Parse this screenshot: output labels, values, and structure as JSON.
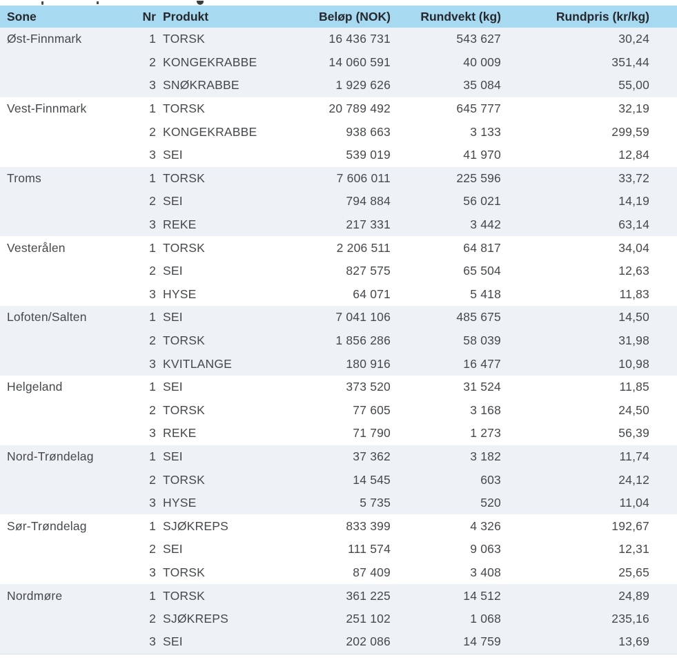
{
  "colors": {
    "header_bg": "#a7d9f1",
    "band_bg": "#eef1f6",
    "text": "#45484d",
    "header_text": "#26282d",
    "hairline": "#dde1e7",
    "page_bg": "#ffffff"
  },
  "table": {
    "headers": [
      "Sone",
      "Nr",
      "Produkt",
      "Beløp (NOK)",
      "Rundvekt (kg)",
      "Rundpris (kr/kg)"
    ],
    "groups": [
      {
        "sone": "Øst-Finnmark",
        "rows": [
          {
            "nr": "1",
            "produkt": "TORSK",
            "belop": "16 436 731",
            "rundvekt": "543 627",
            "rundpris": "30,24"
          },
          {
            "nr": "2",
            "produkt": "KONGEKRABBE",
            "belop": "14 060 591",
            "rundvekt": "40 009",
            "rundpris": "351,44"
          },
          {
            "nr": "3",
            "produkt": "SNØKRABBE",
            "belop": "1 929 626",
            "rundvekt": "35 084",
            "rundpris": "55,00"
          }
        ]
      },
      {
        "sone": "Vest-Finnmark",
        "rows": [
          {
            "nr": "1",
            "produkt": "TORSK",
            "belop": "20 789 492",
            "rundvekt": "645 777",
            "rundpris": "32,19"
          },
          {
            "nr": "2",
            "produkt": "KONGEKRABBE",
            "belop": "938 663",
            "rundvekt": "3 133",
            "rundpris": "299,59"
          },
          {
            "nr": "3",
            "produkt": "SEI",
            "belop": "539 019",
            "rundvekt": "41 970",
            "rundpris": "12,84"
          }
        ]
      },
      {
        "sone": "Troms",
        "rows": [
          {
            "nr": "1",
            "produkt": "TORSK",
            "belop": "7 606 011",
            "rundvekt": "225 596",
            "rundpris": "33,72"
          },
          {
            "nr": "2",
            "produkt": "SEI",
            "belop": "794 884",
            "rundvekt": "56 021",
            "rundpris": "14,19"
          },
          {
            "nr": "3",
            "produkt": "REKE",
            "belop": "217 331",
            "rundvekt": "3 442",
            "rundpris": "63,14"
          }
        ]
      },
      {
        "sone": "Vesterålen",
        "rows": [
          {
            "nr": "1",
            "produkt": "TORSK",
            "belop": "2 206 511",
            "rundvekt": "64 817",
            "rundpris": "34,04"
          },
          {
            "nr": "2",
            "produkt": "SEI",
            "belop": "827 575",
            "rundvekt": "65 504",
            "rundpris": "12,63"
          },
          {
            "nr": "3",
            "produkt": "HYSE",
            "belop": "64 071",
            "rundvekt": "5 418",
            "rundpris": "11,83"
          }
        ]
      },
      {
        "sone": "Lofoten/Salten",
        "rows": [
          {
            "nr": "1",
            "produkt": "SEI",
            "belop": "7 041 106",
            "rundvekt": "485 675",
            "rundpris": "14,50"
          },
          {
            "nr": "2",
            "produkt": "TORSK",
            "belop": "1 856 286",
            "rundvekt": "58 039",
            "rundpris": "31,98"
          },
          {
            "nr": "3",
            "produkt": "KVITLANGE",
            "belop": "180 916",
            "rundvekt": "16 477",
            "rundpris": "10,98"
          }
        ]
      },
      {
        "sone": "Helgeland",
        "rows": [
          {
            "nr": "1",
            "produkt": "SEI",
            "belop": "373 520",
            "rundvekt": "31 524",
            "rundpris": "11,85"
          },
          {
            "nr": "2",
            "produkt": "TORSK",
            "belop": "77 605",
            "rundvekt": "3 168",
            "rundpris": "24,50"
          },
          {
            "nr": "3",
            "produkt": "REKE",
            "belop": "71 790",
            "rundvekt": "1 273",
            "rundpris": "56,39"
          }
        ]
      },
      {
        "sone": "Nord-Trøndelag",
        "rows": [
          {
            "nr": "1",
            "produkt": "SEI",
            "belop": "37 362",
            "rundvekt": "3 182",
            "rundpris": "11,74"
          },
          {
            "nr": "2",
            "produkt": "TORSK",
            "belop": "14 545",
            "rundvekt": "603",
            "rundpris": "24,12"
          },
          {
            "nr": "3",
            "produkt": "HYSE",
            "belop": "5 735",
            "rundvekt": "520",
            "rundpris": "11,04"
          }
        ]
      },
      {
        "sone": "Sør-Trøndelag",
        "rows": [
          {
            "nr": "1",
            "produkt": "SJØKREPS",
            "belop": "833 399",
            "rundvekt": "4 326",
            "rundpris": "192,67"
          },
          {
            "nr": "2",
            "produkt": "SEI",
            "belop": "111 574",
            "rundvekt": "9 063",
            "rundpris": "12,31"
          },
          {
            "nr": "3",
            "produkt": "TORSK",
            "belop": "87 409",
            "rundvekt": "3 408",
            "rundpris": "25,65"
          }
        ]
      },
      {
        "sone": "Nordmøre",
        "rows": [
          {
            "nr": "1",
            "produkt": "TORSK",
            "belop": "361 225",
            "rundvekt": "14 512",
            "rundpris": "24,89"
          },
          {
            "nr": "2",
            "produkt": "SJØKREPS",
            "belop": "251 102",
            "rundvekt": "1 068",
            "rundpris": "235,16"
          },
          {
            "nr": "3",
            "produkt": "SEI",
            "belop": "202 086",
            "rundvekt": "14 759",
            "rundpris": "13,69"
          }
        ]
      }
    ]
  }
}
